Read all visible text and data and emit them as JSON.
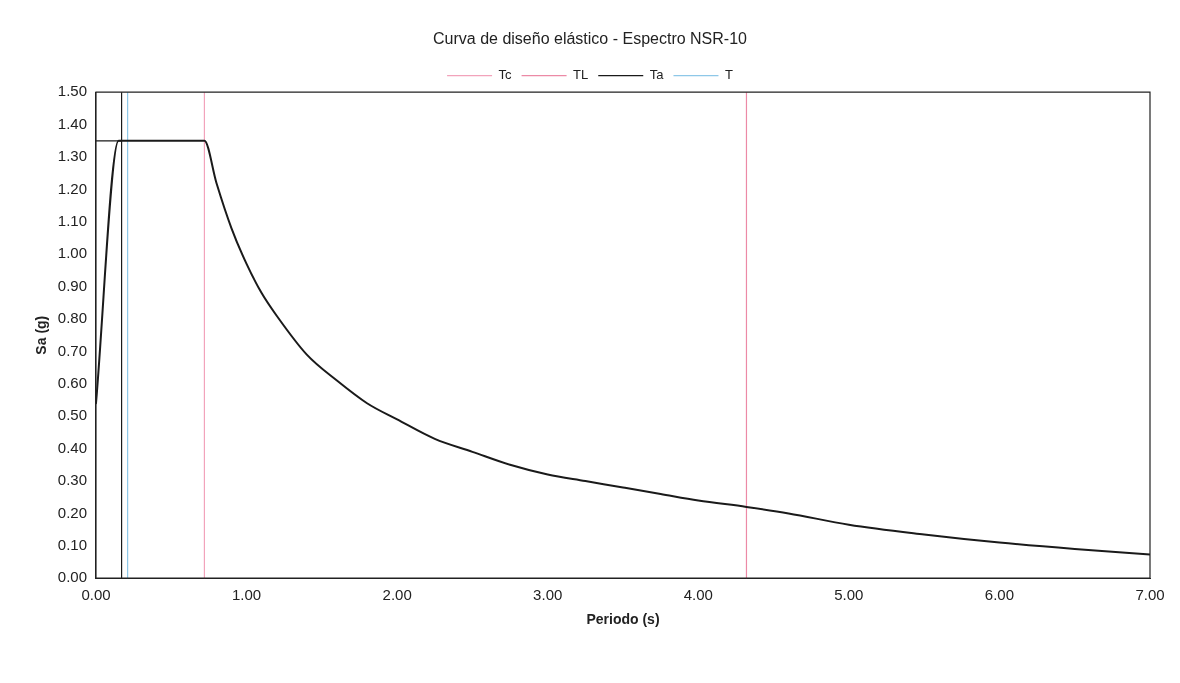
{
  "chart_data": {
    "type": "line",
    "title": "Curva de diseño elástico - Espectro NSR-10",
    "xlabel": "Periodo (s)",
    "ylabel": "Sa (g)",
    "xlim": [
      0,
      7
    ],
    "ylim": [
      0,
      1.5
    ],
    "xticks": [
      {
        "value": 0,
        "label": "0.00"
      },
      {
        "value": 1,
        "label": "1.00"
      },
      {
        "value": 2,
        "label": "2.00"
      },
      {
        "value": 3,
        "label": "3.00"
      },
      {
        "value": 4,
        "label": "4.00"
      },
      {
        "value": 5,
        "label": "5.00"
      },
      {
        "value": 6,
        "label": "6.00"
      },
      {
        "value": 7,
        "label": "7.00"
      }
    ],
    "yticks": [
      {
        "value": 0,
        "label": "0.00"
      },
      {
        "value": 0.1,
        "label": "0.10"
      },
      {
        "value": 0.2,
        "label": "0.20"
      },
      {
        "value": 0.3,
        "label": "0.30"
      },
      {
        "value": 0.4,
        "label": "0.40"
      },
      {
        "value": 0.5,
        "label": "0.50"
      },
      {
        "value": 0.6,
        "label": "0.60"
      },
      {
        "value": 0.7,
        "label": "0.70"
      },
      {
        "value": 0.8,
        "label": "0.80"
      },
      {
        "value": 0.9,
        "label": "0.90"
      },
      {
        "value": 1.0,
        "label": "1.00"
      },
      {
        "value": 1.1,
        "label": "1.10"
      },
      {
        "value": 1.2,
        "label": "1.20"
      },
      {
        "value": 1.3,
        "label": "1.30"
      },
      {
        "value": 1.4,
        "label": "1.40"
      },
      {
        "value": 1.5,
        "label": "1.50"
      }
    ],
    "grid": false,
    "legend": "top",
    "marker": "none",
    "line_style": "solid",
    "series": [
      {
        "color": "#1a1a1a",
        "x": [
          0,
          0.15,
          0.72,
          0.8,
          0.9,
          1.0,
          1.1,
          1.2,
          1.4,
          1.6,
          1.8,
          2.0,
          2.25,
          2.5,
          2.75,
          3.0,
          3.25,
          3.5,
          3.75,
          4.0,
          4.32,
          4.6,
          5.0,
          5.5,
          6.0,
          6.5,
          7.0
        ],
        "values": [
          0.54,
          1.35,
          1.35,
          1.22,
          1.08,
          0.97,
          0.88,
          0.81,
          0.69,
          0.61,
          0.54,
          0.49,
          0.43,
          0.39,
          0.35,
          0.32,
          0.3,
          0.28,
          0.26,
          0.24,
          0.22,
          0.2,
          0.165,
          0.135,
          0.11,
          0.09,
          0.073
        ]
      },
      {
        "name": "Tc",
        "color": "#f2a3bb",
        "x": [
          0.72,
          0.72
        ],
        "values": [
          0,
          1.5
        ]
      },
      {
        "name": "TL",
        "color": "#ec8aa6",
        "x": [
          4.32,
          4.32
        ],
        "values": [
          0,
          1.5
        ]
      },
      {
        "name": "Ta",
        "color": "#1a1a1a",
        "x": [
          0,
          0.17,
          0.17,
          0.17
        ],
        "values": [
          1.35,
          1.35,
          1.5,
          0
        ]
      },
      {
        "name": "T",
        "color": "#8ec8e8",
        "x": [
          0.21,
          0.21
        ],
        "values": [
          0,
          1.5
        ]
      }
    ]
  }
}
